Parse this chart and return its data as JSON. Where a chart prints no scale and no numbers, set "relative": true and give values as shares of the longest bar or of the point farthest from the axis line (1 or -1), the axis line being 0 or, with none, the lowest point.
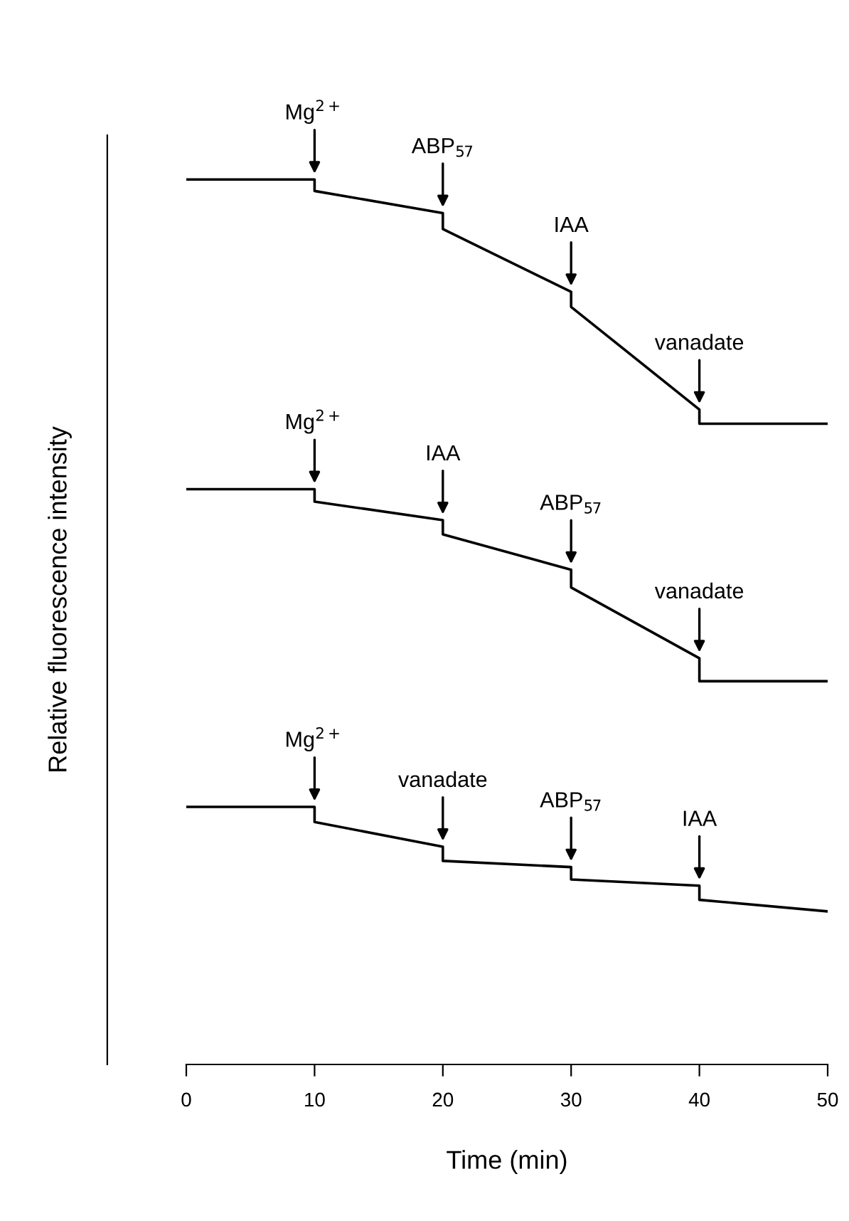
{
  "chart_data": {
    "type": "line",
    "relative": true,
    "xlabel": "Time (min)",
    "ylabel": "Relative fluorescence intensity",
    "xlim": [
      0,
      50
    ],
    "xticks": [
      0,
      10,
      20,
      30,
      40,
      50
    ],
    "grid": false,
    "legend": false,
    "marker": "none",
    "line_style": "solid",
    "series": [
      {
        "color": "#000000",
        "x": [
          0,
          10,
          10,
          20,
          20,
          30,
          30,
          40,
          40,
          50
        ],
        "values": [
          1.0,
          1.0,
          0.987,
          0.962,
          0.944,
          0.873,
          0.856,
          0.74,
          0.724,
          0.724
        ]
      },
      {
        "color": "#000000",
        "x": [
          0,
          10,
          10,
          20,
          20,
          30,
          30,
          40,
          40,
          50
        ],
        "values": [
          0.65,
          0.65,
          0.636,
          0.615,
          0.599,
          0.559,
          0.539,
          0.459,
          0.433,
          0.433
        ]
      },
      {
        "color": "#000000",
        "x": [
          0,
          10,
          10,
          20,
          20,
          30,
          30,
          40,
          40,
          50
        ],
        "values": [
          0.291,
          0.291,
          0.274,
          0.246,
          0.23,
          0.223,
          0.209,
          0.202,
          0.186,
          0.173
        ]
      }
    ],
    "annotations": [
      {
        "text": "Mg$^{2+}$",
        "x": 10,
        "y": 1.0
      },
      {
        "text": "ABP$_{57}$",
        "x": 20,
        "y": 0.962
      },
      {
        "text": "IAA",
        "x": 30,
        "y": 0.873
      },
      {
        "text": "vanadate",
        "x": 40,
        "y": 0.74
      },
      {
        "text": "Mg$^{2+}$",
        "x": 10,
        "y": 0.65
      },
      {
        "text": "IAA",
        "x": 20,
        "y": 0.615
      },
      {
        "text": "ABP$_{57}$",
        "x": 30,
        "y": 0.559
      },
      {
        "text": "vanadate",
        "x": 40,
        "y": 0.459
      },
      {
        "text": "Mg$^{2+}$",
        "x": 10,
        "y": 0.291
      },
      {
        "text": "vanadate",
        "x": 20,
        "y": 0.246
      },
      {
        "text": "ABP$_{57}$",
        "x": 30,
        "y": 0.223
      },
      {
        "text": "IAA",
        "x": 40,
        "y": 0.202
      }
    ]
  }
}
